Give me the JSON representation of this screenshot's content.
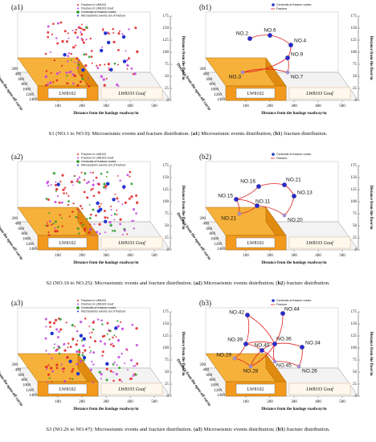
{
  "axes": {
    "zticks": [
      0,
      25,
      50,
      75,
      100,
      125,
      150,
      175
    ],
    "xticks": [
      100,
      200,
      300,
      400,
      500
    ],
    "depth_ticks": [
      200,
      400,
      600,
      800,
      1000,
      1200,
      1400
    ],
    "z_label": "Distance from the floor/m",
    "x_label": "Distance from the haulage roadway/m",
    "depth_label": "Distance from the open-off cut/m",
    "lw8102": "LW8102",
    "lw8103": "LW8103 Goaf"
  },
  "legend_a": [
    "Fracture in LW8102",
    "Fracture in LW8103 Goaf",
    "Centroids of fracture nodes",
    "Microseismic events out of fracture"
  ],
  "legend_b": [
    "Centroids of fracture nodes",
    "Fracture"
  ],
  "rows": [
    {
      "a_label": "(a1)",
      "b_label": "(b1)",
      "nodes": [
        "NO.2",
        "NO.6",
        "NO.4",
        "NO.9",
        "NO.3",
        "NO.7"
      ],
      "caption": [
        {
          "text": "S1 (NO.1 to NO.9): Microseismic events and fracture distribution. ("
        },
        {
          "text": "a1",
          "bold": true
        },
        {
          "text": ") Microseismic events distribution; ("
        },
        {
          "text": "b1",
          "bold": true
        },
        {
          "text": ") fracture distribution."
        }
      ]
    },
    {
      "a_label": "(a2)",
      "b_label": "(b2)",
      "nodes": [
        "NO.16",
        "NO.21",
        "NO.13",
        "NO.15",
        "NO.11",
        "NO.21",
        "NO.20"
      ],
      "caption": [
        {
          "text": "S2 (NO.10 to NO.25): Microseismic events and fracture distribution. ("
        },
        {
          "text": "a2",
          "bold": true
        },
        {
          "text": ") Microseismic events distribution; ("
        },
        {
          "text": "b2",
          "bold": true
        },
        {
          "text": ") fracture distribution."
        }
      ]
    },
    {
      "a_label": "(a3)",
      "b_label": "(b3)",
      "nodes": [
        "NO.42",
        "NO.44",
        "NO.39",
        "NO.36",
        "NO.34",
        "NO.40",
        "NO.29",
        "NO.28",
        "NO.45",
        "NO.26"
      ],
      "caption": [
        {
          "text": "S3 (NO.26 to NO.47): Microseismic events and fracture distribution. ("
        },
        {
          "text": "a3",
          "bold": true
        },
        {
          "text": ") Microseismic events distribution; ("
        },
        {
          "text": "b3",
          "bold": true
        },
        {
          "text": ") fracture distribution."
        }
      ]
    }
  ]
}
